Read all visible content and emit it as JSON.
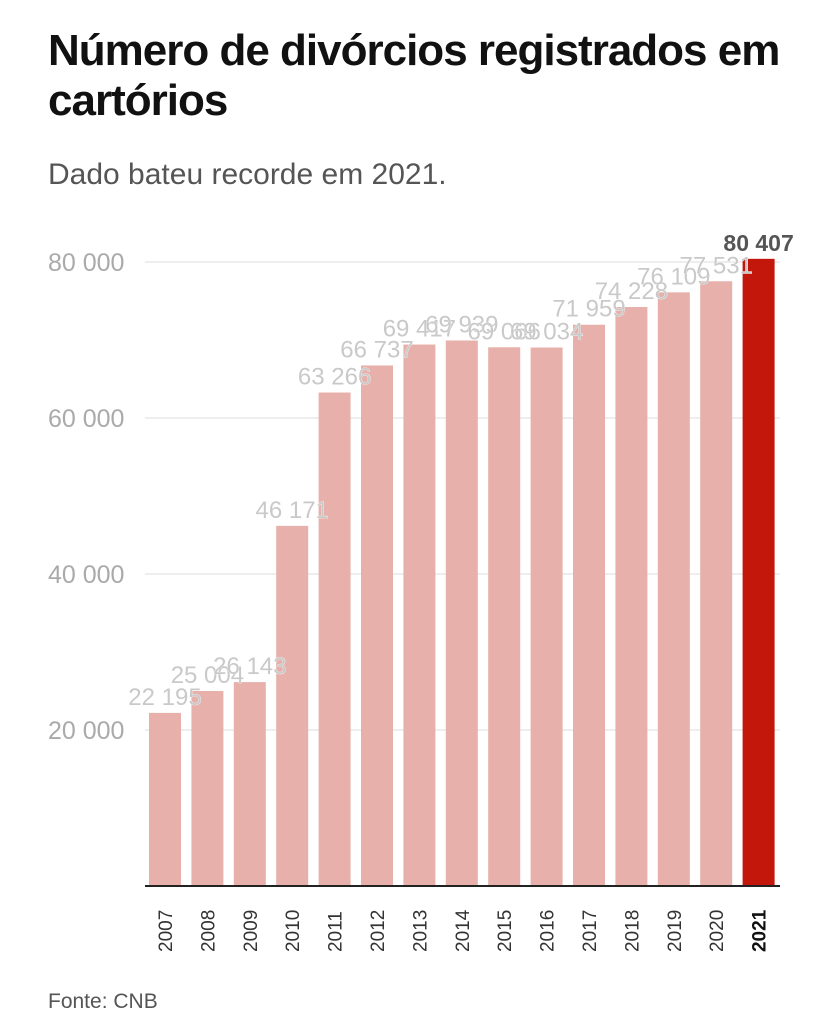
{
  "header": {
    "title": "Número de divórcios registrados em cartórios",
    "subtitle": "Dado bateu recorde em 2021."
  },
  "footer": {
    "source": "Fonte: CNB"
  },
  "colors": {
    "bar": "#e8b0aa",
    "highlight": "#c4170c",
    "grid": "#dddddd",
    "axis": "#222222",
    "tick_text": "#aaaaaa",
    "label_text": "#c9c9c9"
  },
  "chart_data": {
    "type": "bar",
    "categories": [
      "2007",
      "2008",
      "2009",
      "2010",
      "2011",
      "2012",
      "2013",
      "2014",
      "2015",
      "2016",
      "2017",
      "2018",
      "2019",
      "2020",
      "2021"
    ],
    "values": [
      22195,
      25004,
      26143,
      46171,
      63266,
      66737,
      69417,
      69939,
      69066,
      69034,
      71959,
      74228,
      76109,
      77531,
      80407
    ],
    "data_labels": [
      "22 195",
      "25 004",
      "26 143",
      "46 171",
      "63 266",
      "66 737",
      "69 417",
      "69 939",
      "69 066",
      "69 034",
      "71 959",
      "74 228",
      "76 109",
      "77 531",
      "80 407"
    ],
    "highlight_index": 14,
    "yticks": [
      20000,
      40000,
      60000,
      80000
    ],
    "ytick_labels": [
      "20 000",
      "40 000",
      "60 000",
      "80 000"
    ],
    "ylim": [
      0,
      80000
    ],
    "grid": true
  }
}
